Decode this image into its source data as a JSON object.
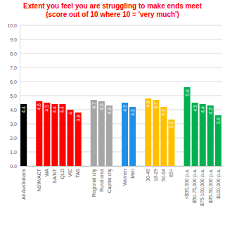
{
  "chart_data": {
    "type": "bar",
    "title": "Extent you feel you are struggling to make ends meet",
    "subtitle": "(score out of 10 where 10 = 'very much')",
    "categories": [
      "All Australians",
      "NSW/ACT",
      "WA",
      "SA/NT",
      "QLD",
      "VIC",
      "TAS",
      "Regional city",
      "Rural area",
      "Capital city",
      "Women",
      "Men",
      "30-49",
      "18-29",
      "50-64",
      "65+",
      "<$35,000 p.a.",
      "$50-75,000 p.a.",
      "$75-100,000 p.a.",
      "$35-50,000 p.a.",
      "$100,000 p.a."
    ],
    "values": [
      4.4,
      4.6,
      4.5,
      4.4,
      4.4,
      4.0,
      3.8,
      4.7,
      4.6,
      4.3,
      4.5,
      4.2,
      4.8,
      4.7,
      4.2,
      3.3,
      5.6,
      4.5,
      4.4,
      4.3,
      3.6
    ],
    "colors": [
      "#000000",
      "#ff0000",
      "#ff0000",
      "#ff0000",
      "#ff0000",
      "#ff0000",
      "#ff0000",
      "#a6a6a6",
      "#a6a6a6",
      "#a6a6a6",
      "#1f8fe8",
      "#1f8fe8",
      "#ffc000",
      "#ffc000",
      "#ffc000",
      "#ffc000",
      "#00b050",
      "#00b050",
      "#00b050",
      "#00b050",
      "#00b050"
    ],
    "ylim": [
      0,
      10
    ],
    "yticks": [
      {
        "value": 0,
        "label": "0.0"
      },
      {
        "value": 1,
        "label": "1.0"
      },
      {
        "value": 2,
        "label": "2.0"
      },
      {
        "value": 3,
        "label": "3.0"
      },
      {
        "value": 4,
        "label": "4.0"
      },
      {
        "value": 5,
        "label": "5.0"
      },
      {
        "value": 6,
        "label": "6.0"
      },
      {
        "value": 7,
        "label": "7.0"
      },
      {
        "value": 8,
        "label": "8.0"
      },
      {
        "value": 9,
        "label": "9.0"
      },
      {
        "value": 10,
        "label": "10.0"
      }
    ],
    "grid": true,
    "data_labels": true
  }
}
